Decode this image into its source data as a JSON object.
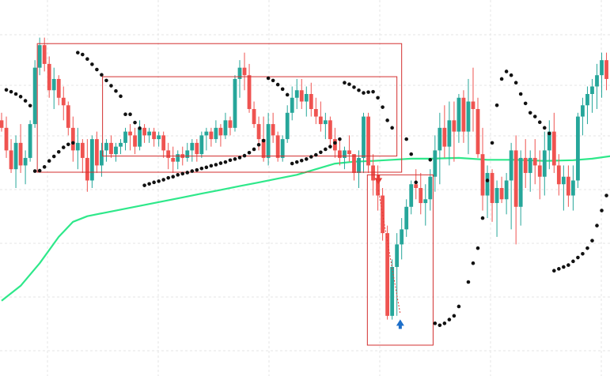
{
  "chart_data": {
    "type": "candlestick",
    "ylim": [
      0,
      100
    ],
    "x_range": [
      0,
      128
    ],
    "grid": true,
    "colors": {
      "up": "#26a69a",
      "down": "#ef5350",
      "ma": "#2ee88a",
      "sar": "#111111",
      "box": "#d32f2f",
      "sell_arrow": "#e53935",
      "buy_arrow": "#1e6fc9"
    },
    "candles": [
      [
        0,
        68,
        70,
        65,
        66
      ],
      [
        1,
        66,
        69,
        58,
        60
      ],
      [
        2,
        60,
        63,
        54,
        55
      ],
      [
        3,
        55,
        64,
        50,
        62
      ],
      [
        4,
        62,
        67,
        54,
        56
      ],
      [
        5,
        56,
        60,
        51,
        58
      ],
      [
        6,
        58,
        68,
        57,
        67
      ],
      [
        7,
        67,
        84,
        66,
        82
      ],
      [
        8,
        82,
        90,
        80,
        88
      ],
      [
        9,
        88,
        90,
        81,
        83
      ],
      [
        10,
        83,
        85,
        74,
        76
      ],
      [
        11,
        76,
        82,
        71,
        79
      ],
      [
        12,
        79,
        80,
        72,
        74
      ],
      [
        13,
        74,
        77,
        68,
        72
      ],
      [
        14,
        72,
        73,
        64,
        66
      ],
      [
        15,
        66,
        69,
        57,
        60
      ],
      [
        16,
        60,
        66,
        55,
        62
      ],
      [
        17,
        62,
        63,
        54,
        58
      ],
      [
        18,
        58,
        63,
        49,
        52
      ],
      [
        19,
        52,
        64,
        50,
        63
      ],
      [
        20,
        63,
        65,
        54,
        56
      ],
      [
        21,
        56,
        62,
        53,
        60
      ],
      [
        22,
        60,
        63,
        57,
        62
      ],
      [
        23,
        62,
        64,
        58,
        59
      ],
      [
        24,
        59,
        62,
        57,
        61
      ],
      [
        25,
        61,
        63,
        59,
        62
      ],
      [
        26,
        62,
        66,
        60,
        65
      ],
      [
        27,
        65,
        67,
        60,
        64
      ],
      [
        28,
        64,
        66,
        59,
        61
      ],
      [
        29,
        61,
        68,
        60,
        66
      ],
      [
        30,
        66,
        67,
        62,
        64
      ],
      [
        31,
        64,
        66,
        62,
        65
      ],
      [
        32,
        65,
        66,
        61,
        63
      ],
      [
        33,
        63,
        65,
        61,
        64
      ],
      [
        34,
        64,
        65,
        58,
        60
      ],
      [
        35,
        60,
        62,
        55,
        58
      ],
      [
        36,
        58,
        61,
        54,
        57
      ],
      [
        37,
        57,
        60,
        55,
        59
      ],
      [
        38,
        59,
        61,
        56,
        58
      ],
      [
        39,
        58,
        62,
        57,
        60
      ],
      [
        40,
        60,
        63,
        57,
        62
      ],
      [
        41,
        62,
        63,
        57,
        59
      ],
      [
        42,
        59,
        65,
        58,
        64
      ],
      [
        43,
        64,
        66,
        60,
        65
      ],
      [
        44,
        65,
        66,
        61,
        63
      ],
      [
        45,
        63,
        68,
        62,
        66
      ],
      [
        46,
        66,
        67,
        61,
        64
      ],
      [
        47,
        64,
        70,
        63,
        68
      ],
      [
        48,
        68,
        69,
        64,
        66
      ],
      [
        49,
        66,
        80,
        65,
        79
      ],
      [
        50,
        79,
        84,
        74,
        82
      ],
      [
        51,
        82,
        86,
        76,
        80
      ],
      [
        52,
        80,
        83,
        70,
        71
      ],
      [
        53,
        71,
        73,
        66,
        67
      ],
      [
        54,
        67,
        69,
        60,
        63
      ],
      [
        55,
        63,
        69,
        57,
        58
      ],
      [
        56,
        58,
        70,
        56,
        67
      ],
      [
        57,
        67,
        70,
        62,
        64
      ],
      [
        58,
        64,
        65,
        57,
        58
      ],
      [
        59,
        58,
        64,
        57,
        63
      ],
      [
        60,
        63,
        72,
        62,
        70
      ],
      [
        61,
        70,
        77,
        68,
        74
      ],
      [
        62,
        74,
        79,
        71,
        76
      ],
      [
        63,
        76,
        79,
        71,
        73
      ],
      [
        64,
        73,
        77,
        69,
        75
      ],
      [
        65,
        75,
        78,
        69,
        71
      ],
      [
        66,
        71,
        74,
        67,
        69
      ],
      [
        67,
        69,
        73,
        65,
        67
      ],
      [
        68,
        67,
        70,
        63,
        68
      ],
      [
        69,
        68,
        69,
        61,
        63
      ],
      [
        70,
        63,
        66,
        58,
        60
      ],
      [
        71,
        60,
        63,
        56,
        58
      ],
      [
        72,
        58,
        61,
        55,
        60
      ],
      [
        73,
        60,
        64,
        57,
        59
      ],
      [
        74,
        59,
        59,
        52,
        54
      ],
      [
        75,
        54,
        60,
        50,
        58
      ],
      [
        76,
        58,
        70,
        54,
        69
      ],
      [
        77,
        69,
        70,
        54,
        56
      ],
      [
        78,
        56,
        59,
        48,
        52
      ],
      [
        79,
        52,
        56,
        44,
        48
      ],
      [
        80,
        48,
        50,
        36,
        38
      ],
      [
        81,
        38,
        40,
        15,
        16
      ],
      [
        82,
        16,
        31,
        15,
        29
      ],
      [
        83,
        29,
        38,
        16,
        35
      ],
      [
        84,
        35,
        42,
        31,
        39
      ],
      [
        85,
        39,
        47,
        37,
        45
      ],
      [
        86,
        45,
        52,
        43,
        51
      ],
      [
        87,
        51,
        55,
        47,
        50
      ],
      [
        88,
        50,
        54,
        43,
        46
      ],
      [
        89,
        46,
        51,
        40,
        47
      ],
      [
        90,
        47,
        55,
        44,
        53
      ],
      [
        91,
        53,
        64,
        49,
        60
      ],
      [
        92,
        60,
        70,
        51,
        66
      ],
      [
        93,
        66,
        72,
        58,
        61
      ],
      [
        94,
        61,
        73,
        56,
        68
      ],
      [
        95,
        68,
        73,
        57,
        65
      ],
      [
        96,
        65,
        75,
        62,
        74
      ],
      [
        97,
        74,
        76,
        62,
        65
      ],
      [
        98,
        65,
        79,
        59,
        73
      ],
      [
        99,
        73,
        82,
        65,
        71
      ],
      [
        100,
        71,
        74,
        58,
        59
      ],
      [
        101,
        59,
        66,
        44,
        48
      ],
      [
        102,
        48,
        56,
        42,
        54
      ],
      [
        103,
        54,
        55,
        41,
        46
      ],
      [
        104,
        46,
        52,
        37,
        50
      ],
      [
        105,
        50,
        53,
        46,
        47
      ],
      [
        106,
        47,
        54,
        43,
        52
      ],
      [
        107,
        52,
        62,
        39,
        60
      ],
      [
        108,
        60,
        64,
        35,
        45
      ],
      [
        109,
        45,
        60,
        40,
        58
      ],
      [
        110,
        58,
        63,
        50,
        54
      ],
      [
        111,
        54,
        60,
        49,
        58
      ],
      [
        112,
        58,
        63,
        51,
        56
      ],
      [
        113,
        56,
        60,
        47,
        53
      ],
      [
        114,
        53,
        65,
        48,
        60
      ],
      [
        115,
        60,
        68,
        55,
        65
      ],
      [
        116,
        65,
        70,
        54,
        56
      ],
      [
        117,
        56,
        59,
        48,
        51
      ],
      [
        118,
        51,
        56,
        44,
        53
      ],
      [
        119,
        53,
        56,
        45,
        48
      ],
      [
        120,
        48,
        56,
        44,
        52
      ],
      [
        121,
        52,
        70,
        50,
        69
      ],
      [
        122,
        69,
        74,
        64,
        72
      ],
      [
        123,
        72,
        77,
        67,
        75
      ],
      [
        124,
        75,
        79,
        70,
        77
      ],
      [
        125,
        77,
        83,
        71,
        80
      ],
      [
        126,
        80,
        86,
        74,
        84
      ],
      [
        127,
        84,
        86,
        76,
        79
      ]
    ],
    "moving_average": [
      [
        0,
        20
      ],
      [
        4,
        24
      ],
      [
        8,
        30
      ],
      [
        12,
        37
      ],
      [
        15,
        41
      ],
      [
        18,
        42.5
      ],
      [
        22,
        43.5
      ],
      [
        26,
        44.5
      ],
      [
        30,
        45.5
      ],
      [
        34,
        46.5
      ],
      [
        38,
        47.5
      ],
      [
        42,
        48.5
      ],
      [
        46,
        49.5
      ],
      [
        50,
        50.5
      ],
      [
        54,
        51.5
      ],
      [
        58,
        52.5
      ],
      [
        62,
        53.5
      ],
      [
        66,
        55
      ],
      [
        70,
        56.5
      ],
      [
        74,
        57
      ],
      [
        78,
        57.2
      ],
      [
        82,
        57.5
      ],
      [
        86,
        57.8
      ],
      [
        90,
        57.8
      ],
      [
        96,
        58
      ],
      [
        102,
        57.5
      ],
      [
        108,
        57.5
      ],
      [
        114,
        57.2
      ],
      [
        120,
        57.4
      ],
      [
        124,
        57.8
      ],
      [
        128,
        58.5
      ]
    ],
    "sar": [
      [
        1,
        76.1
      ],
      [
        2,
        75.6
      ],
      [
        3,
        75
      ],
      [
        4,
        74.3
      ],
      [
        5,
        73.2
      ],
      [
        6,
        71.9
      ],
      [
        7,
        54.5
      ],
      [
        8,
        54.6
      ],
      [
        9,
        55.6
      ],
      [
        10,
        57.2
      ],
      [
        11,
        58.4
      ],
      [
        12,
        59.6
      ],
      [
        13,
        60.8
      ],
      [
        14,
        61.6
      ],
      [
        15,
        62
      ],
      [
        16,
        86
      ],
      [
        17,
        85.5
      ],
      [
        18,
        84.3
      ],
      [
        19,
        82.9
      ],
      [
        20,
        81.5
      ],
      [
        21,
        80.1
      ],
      [
        22,
        78.6
      ],
      [
        23,
        77.2
      ],
      [
        24,
        75.8
      ],
      [
        25,
        74.4
      ],
      [
        26,
        69.6
      ],
      [
        27,
        69.6
      ],
      [
        28,
        67.4
      ],
      [
        29,
        65.9
      ],
      [
        30,
        50.7
      ],
      [
        31,
        51.1
      ],
      [
        32,
        51.5
      ],
      [
        33,
        51.8
      ],
      [
        34,
        52.2
      ],
      [
        35,
        52.7
      ],
      [
        36,
        53
      ],
      [
        37,
        53.5
      ],
      [
        38,
        53.8
      ],
      [
        39,
        54.1
      ],
      [
        40,
        54.5
      ],
      [
        41,
        54.8
      ],
      [
        42,
        55.2
      ],
      [
        43,
        55.5
      ],
      [
        44,
        55.9
      ],
      [
        45,
        56.2
      ],
      [
        46,
        56.6
      ],
      [
        47,
        56.9
      ],
      [
        48,
        57.4
      ],
      [
        49,
        57.7
      ],
      [
        50,
        58.1
      ],
      [
        51,
        58.6
      ],
      [
        52,
        59.4
      ],
      [
        53,
        60.3
      ],
      [
        54,
        61.5
      ],
      [
        55,
        62.6
      ],
      [
        56,
        79.2
      ],
      [
        57,
        78.6
      ],
      [
        58,
        77.5
      ],
      [
        59,
        76.3
      ],
      [
        60,
        74.8
      ],
      [
        61,
        56.5
      ],
      [
        62,
        56.9
      ],
      [
        63,
        57.3
      ],
      [
        64,
        57.7
      ],
      [
        65,
        58.3
      ],
      [
        66,
        58.8
      ],
      [
        67,
        59.5
      ],
      [
        68,
        60.3
      ],
      [
        69,
        61
      ],
      [
        70,
        62
      ],
      [
        71,
        63
      ],
      [
        72,
        78
      ],
      [
        73,
        77.6
      ],
      [
        74,
        76.8
      ],
      [
        75,
        76
      ],
      [
        76,
        75.3
      ],
      [
        77,
        75.5
      ],
      [
        78,
        75.6
      ],
      [
        79,
        74
      ],
      [
        80,
        71.5
      ],
      [
        81,
        68
      ],
      [
        82,
        66
      ],
      [
        85,
        63
      ],
      [
        86,
        59
      ],
      [
        87,
        51.5
      ],
      [
        90,
        57.5
      ],
      [
        91,
        14
      ],
      [
        92,
        13.5
      ],
      [
        93,
        14
      ],
      [
        94,
        15
      ],
      [
        95,
        16
      ],
      [
        96,
        18.5
      ],
      [
        98,
        25
      ],
      [
        99,
        30
      ],
      [
        100,
        34
      ],
      [
        101,
        42
      ],
      [
        102,
        52
      ],
      [
        103,
        62
      ],
      [
        104,
        72
      ],
      [
        105,
        79
      ],
      [
        106,
        81
      ],
      [
        107,
        80
      ],
      [
        108,
        78
      ],
      [
        109,
        75
      ],
      [
        110,
        72.5
      ],
      [
        111,
        70
      ],
      [
        112,
        69
      ],
      [
        113,
        67.5
      ],
      [
        114,
        66
      ],
      [
        115,
        64.5
      ],
      [
        116,
        28
      ],
      [
        117,
        28.5
      ],
      [
        118,
        29
      ],
      [
        119,
        29.5
      ],
      [
        120,
        30.5
      ],
      [
        121,
        31.5
      ],
      [
        122,
        32.5
      ],
      [
        123,
        34
      ],
      [
        124,
        36
      ],
      [
        125,
        40
      ],
      [
        126,
        44
      ],
      [
        127,
        48
      ]
    ],
    "annotations": {
      "boxes": [
        {
          "x0": 7.5,
          "x1": 84,
          "y0": 54.2,
          "y1": 88.4
        },
        {
          "x0": 21.2,
          "x1": 83,
          "y0": 58.5,
          "y1": 79.6
        },
        {
          "x0": 76.8,
          "x1": 90.6,
          "y0": 8.2,
          "y1": 53.5
        }
      ],
      "sell_signal": {
        "x": 79.1,
        "y": 51.8
      },
      "buy_signal": {
        "x": 83.7,
        "y": 14.2
      },
      "trend_line": [
        [
          79.1,
          49.5
        ],
        [
          83.7,
          16.5
        ]
      ]
    }
  }
}
